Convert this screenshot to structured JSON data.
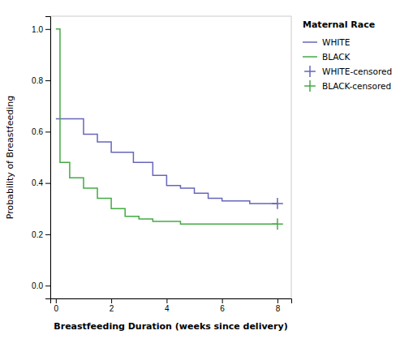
{
  "chart_data": {
    "type": "line",
    "xlabel": "Breastfeeding Duration (weeks since delivery)",
    "ylabel": "Probability of Breastfeeding",
    "legend_title": "Maternal Race",
    "xlim": [
      -0.2,
      8.5
    ],
    "ylim": [
      -0.05,
      1.05
    ],
    "xticks": [
      0,
      2,
      4,
      6,
      8
    ],
    "yticks": [
      {
        "value": 0.0,
        "label": "0.0"
      },
      0.2,
      0.4,
      0.6,
      0.8,
      {
        "value": 1.0,
        "label": "1.0"
      }
    ],
    "grid": false,
    "legend": "right",
    "series": [
      {
        "name": "WHITE",
        "type": "line",
        "line_style": "step",
        "color": "#6666bb",
        "x": [
          0,
          1.0,
          1.0,
          1.5,
          1.5,
          2.0,
          2.0,
          2.8,
          2.8,
          3.5,
          3.5,
          4.0,
          4.0,
          4.5,
          4.5,
          5.0,
          5.0,
          5.5,
          5.5,
          6.0,
          6.0,
          7.0,
          7.0,
          7.5,
          7.5,
          8.0
        ],
        "values": [
          0.65,
          0.65,
          0.59,
          0.59,
          0.56,
          0.56,
          0.52,
          0.52,
          0.48,
          0.48,
          0.43,
          0.43,
          0.39,
          0.39,
          0.38,
          0.38,
          0.36,
          0.36,
          0.34,
          0.34,
          0.33,
          0.33,
          0.32,
          0.32,
          0.32,
          0.32
        ]
      },
      {
        "name": "BLACK",
        "type": "line",
        "line_style": "step",
        "color": "#44aa44",
        "x": [
          0,
          0.15,
          0.15,
          0.5,
          0.5,
          1.0,
          1.0,
          1.5,
          1.5,
          2.0,
          2.0,
          2.5,
          2.5,
          3.0,
          3.0,
          3.5,
          3.5,
          4.5,
          4.5,
          5.5,
          5.5,
          6.5,
          6.5,
          8.0
        ],
        "values": [
          1.0,
          1.0,
          0.48,
          0.48,
          0.42,
          0.42,
          0.38,
          0.38,
          0.34,
          0.34,
          0.3,
          0.3,
          0.27,
          0.27,
          0.26,
          0.26,
          0.25,
          0.25,
          0.24,
          0.24,
          0.24,
          0.24,
          0.24,
          0.24
        ]
      },
      {
        "name": "WHITE-censored",
        "type": "scatter",
        "marker": "plus",
        "color": "#6666bb",
        "x": [
          8.0
        ],
        "values": [
          0.32
        ]
      },
      {
        "name": "BLACK-censored",
        "type": "scatter",
        "marker": "plus",
        "color": "#44aa44",
        "x": [
          8.0
        ],
        "values": [
          0.24
        ]
      }
    ]
  }
}
